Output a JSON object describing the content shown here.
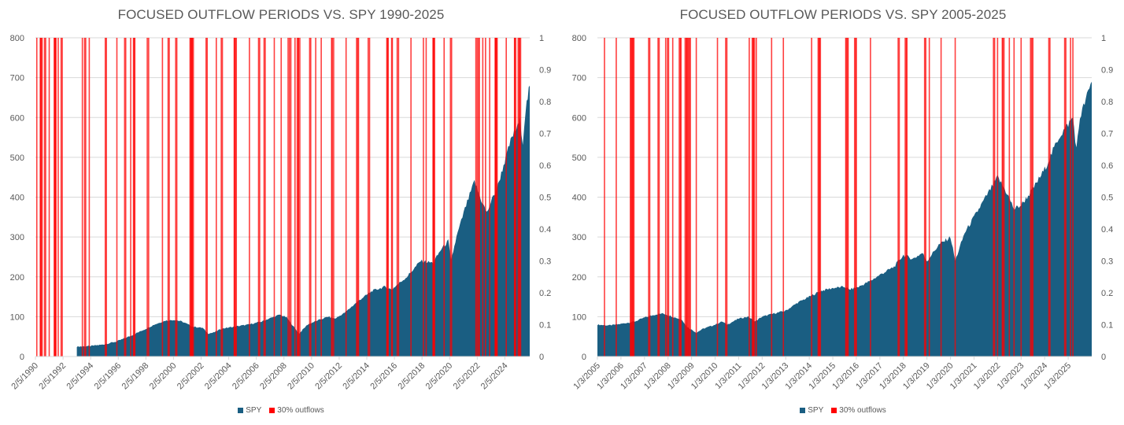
{
  "colors": {
    "spy": "#1a5e82",
    "outflow": "#ff0000",
    "grid": "#d9d9d9",
    "text": "#595959"
  },
  "legend": {
    "spy": "SPY",
    "outflows": "30% outflows"
  },
  "chart_data": [
    {
      "type": "area",
      "title": "FOCUSED OUTFLOW PERIODS VS. SPY 1990-2025",
      "xlabel": "",
      "ylabel": "",
      "y2label": "",
      "ylim": [
        0,
        800
      ],
      "y2lim": [
        0,
        1
      ],
      "yticks": [
        0,
        100,
        200,
        300,
        400,
        500,
        600,
        700,
        800
      ],
      "y2ticks": [
        "0",
        "0.1",
        "0.2",
        "0.3",
        "0.4",
        "0.5",
        "0.6",
        "0.7",
        "0.8",
        "0.9",
        "1"
      ],
      "x_tick_labels": [
        "2/5/1990",
        "2/5/1992",
        "2/5/1994",
        "2/5/1996",
        "2/5/1998",
        "2/5/2000",
        "2/5/2002",
        "2/5/2004",
        "2/5/2006",
        "2/5/2008",
        "2/5/2010",
        "2/5/2012",
        "2/5/2014",
        "2/5/2016",
        "2/5/2018",
        "2/5/2020",
        "2/5/2022",
        "2/5/2024"
      ],
      "x_range": [
        1990.1,
        2025.9
      ],
      "grid": true,
      "legend_position": "bottom",
      "series": [
        {
          "name": "SPY",
          "type": "area",
          "axis": "left",
          "points": [
            [
              1993.1,
              25
            ],
            [
              1994.0,
              26
            ],
            [
              1995.0,
              30
            ],
            [
              1996.0,
              38
            ],
            [
              1997.0,
              52
            ],
            [
              1998.0,
              68
            ],
            [
              1998.7,
              80
            ],
            [
              1999.5,
              90
            ],
            [
              2000.2,
              92
            ],
            [
              2000.7,
              88
            ],
            [
              2001.5,
              75
            ],
            [
              2002.2,
              72
            ],
            [
              2002.6,
              58
            ],
            [
              2003.0,
              60
            ],
            [
              2003.6,
              70
            ],
            [
              2004.5,
              75
            ],
            [
              2005.5,
              80
            ],
            [
              2006.5,
              88
            ],
            [
              2007.0,
              95
            ],
            [
              2007.8,
              105
            ],
            [
              2008.3,
              98
            ],
            [
              2008.8,
              75
            ],
            [
              2009.2,
              58
            ],
            [
              2009.8,
              80
            ],
            [
              2010.5,
              90
            ],
            [
              2011.3,
              100
            ],
            [
              2011.8,
              95
            ],
            [
              2012.5,
              110
            ],
            [
              2013.5,
              140
            ],
            [
              2014.5,
              165
            ],
            [
              2015.4,
              175
            ],
            [
              2015.9,
              168
            ],
            [
              2016.3,
              180
            ],
            [
              2017.0,
              200
            ],
            [
              2018.0,
              240
            ],
            [
              2018.9,
              235
            ],
            [
              2019.5,
              270
            ],
            [
              2020.0,
              290
            ],
            [
              2020.2,
              240
            ],
            [
              2020.6,
              300
            ],
            [
              2021.2,
              370
            ],
            [
              2021.9,
              440
            ],
            [
              2022.3,
              400
            ],
            [
              2022.8,
              360
            ],
            [
              2023.0,
              380
            ],
            [
              2023.6,
              430
            ],
            [
              2024.0,
              480
            ],
            [
              2024.6,
              550
            ],
            [
              2025.2,
              590
            ],
            [
              2025.4,
              540
            ],
            [
              2025.6,
              620
            ],
            [
              2025.9,
              680
            ]
          ]
        },
        {
          "name": "30% outflows",
          "type": "event_bars",
          "axis": "right",
          "value": 1,
          "dates": [
            1990.2,
            1990.45,
            1990.5,
            1990.55,
            1990.8,
            1991.1,
            1991.5,
            1991.55,
            1991.75,
            1992.0,
            1993.5,
            1993.7,
            1994.0,
            1995.2,
            1996.0,
            1996.6,
            1997.0,
            1997.2,
            1997.25,
            1997.3,
            1998.2,
            1998.3,
            1999.3,
            1999.75,
            2000.3,
            2001.3,
            2001.35,
            2001.4,
            2001.45,
            2001.5,
            2002.5,
            2003.2,
            2003.6,
            2004.5,
            2004.55,
            2004.65,
            2005.6,
            2006.3,
            2006.7,
            2007.4,
            2007.9,
            2008.4,
            2008.5,
            2008.6,
            2008.9,
            2009.1,
            2009.15,
            2009.25,
            2010.0,
            2010.4,
            2010.8,
            2011.55,
            2011.6,
            2011.7,
            2012.6,
            2013.4,
            2013.5,
            2014.2,
            2014.3,
            2015.55,
            2015.6,
            2015.65,
            2015.9,
            2015.95,
            2016.3,
            2016.4,
            2017.3,
            2018.2,
            2018.4,
            2018.9,
            2018.95,
            2019.0,
            2019.7,
            2020.2,
            2022.0,
            2022.1,
            2022.2,
            2022.25,
            2022.5,
            2022.7,
            2023.0,
            2023.4,
            2023.45,
            2023.5,
            2024.2,
            2024.8,
            2024.85,
            2025.1,
            2025.2
          ]
        }
      ]
    },
    {
      "type": "area",
      "title": "FOCUSED OUTFLOW PERIODS VS. SPY 2005-2025",
      "xlabel": "",
      "ylabel": "",
      "y2label": "",
      "ylim": [
        0,
        800
      ],
      "y2lim": [
        0,
        1
      ],
      "yticks": [
        0,
        100,
        200,
        300,
        400,
        500,
        600,
        700,
        800
      ],
      "y2ticks": [
        "0",
        "0.1",
        "0.2",
        "0.3",
        "0.4",
        "0.5",
        "0.6",
        "0.7",
        "0.8",
        "0.9",
        "1"
      ],
      "x_tick_labels": [
        "1/3/2005",
        "1/3/2006",
        "1/3/2007",
        "1/3/2008",
        "1/3/2009",
        "1/3/2010",
        "1/3/2011",
        "1/3/2012",
        "1/3/2013",
        "1/3/2014",
        "1/3/2015",
        "1/3/2016",
        "1/3/2017",
        "1/3/2018",
        "1/3/2019",
        "1/3/2020",
        "1/3/2021",
        "1/3/2022",
        "1/3/2023",
        "1/3/2024",
        "1/3/2025"
      ],
      "x_range": [
        2005.0,
        2026.0
      ],
      "grid": true,
      "legend_position": "bottom",
      "series": [
        {
          "name": "SPY",
          "type": "area",
          "axis": "left",
          "points": [
            [
              2005.0,
              80
            ],
            [
              2005.5,
              78
            ],
            [
              2006.0,
              82
            ],
            [
              2006.6,
              88
            ],
            [
              2007.0,
              98
            ],
            [
              2007.5,
              106
            ],
            [
              2007.8,
              108
            ],
            [
              2008.3,
              98
            ],
            [
              2008.6,
              92
            ],
            [
              2008.8,
              75
            ],
            [
              2009.2,
              60
            ],
            [
              2009.5,
              70
            ],
            [
              2010.0,
              80
            ],
            [
              2010.3,
              88
            ],
            [
              2010.5,
              80
            ],
            [
              2011.0,
              95
            ],
            [
              2011.4,
              100
            ],
            [
              2011.7,
              88
            ],
            [
              2012.0,
              100
            ],
            [
              2012.5,
              108
            ],
            [
              2013.0,
              115
            ],
            [
              2013.5,
              135
            ],
            [
              2014.0,
              150
            ],
            [
              2014.5,
              165
            ],
            [
              2015.0,
              172
            ],
            [
              2015.5,
              175
            ],
            [
              2015.7,
              168
            ],
            [
              2016.1,
              175
            ],
            [
              2016.6,
              190
            ],
            [
              2017.0,
              205
            ],
            [
              2017.6,
              225
            ],
            [
              2018.0,
              255
            ],
            [
              2018.4,
              245
            ],
            [
              2018.8,
              260
            ],
            [
              2019.0,
              240
            ],
            [
              2019.5,
              280
            ],
            [
              2020.0,
              300
            ],
            [
              2020.2,
              240
            ],
            [
              2020.6,
              310
            ],
            [
              2021.0,
              350
            ],
            [
              2021.5,
              400
            ],
            [
              2022.0,
              450
            ],
            [
              2022.4,
              410
            ],
            [
              2022.7,
              370
            ],
            [
              2023.0,
              380
            ],
            [
              2023.5,
              420
            ],
            [
              2024.0,
              470
            ],
            [
              2024.6,
              550
            ],
            [
              2025.2,
              600
            ],
            [
              2025.35,
              520
            ],
            [
              2025.5,
              600
            ],
            [
              2026.0,
              690
            ]
          ]
        },
        {
          "name": "30% outflows",
          "type": "event_bars",
          "axis": "right",
          "value": 1,
          "dates": [
            2005.3,
            2005.8,
            2006.4,
            2006.45,
            2006.5,
            2006.55,
            2007.2,
            2007.6,
            2007.9,
            2008.0,
            2008.2,
            2008.5,
            2008.55,
            2008.75,
            2008.8,
            2008.85,
            2008.9,
            2008.95,
            2009.2,
            2010.1,
            2010.45,
            2010.5,
            2011.45,
            2011.6,
            2011.65,
            2011.75,
            2012.4,
            2012.9,
            2014.1,
            2014.4,
            2014.45,
            2015.55,
            2015.6,
            2015.65,
            2015.95,
            2016.0,
            2016.6,
            2017.8,
            2018.1,
            2018.15,
            2018.9,
            2018.95,
            2019.1,
            2019.6,
            2020.2,
            2021.85,
            2022.0,
            2022.2,
            2022.25,
            2022.5,
            2022.7,
            2023.0,
            2023.4,
            2023.45,
            2023.5,
            2024.2,
            2024.85,
            2024.9,
            2025.1,
            2025.2
          ]
        }
      ]
    }
  ]
}
